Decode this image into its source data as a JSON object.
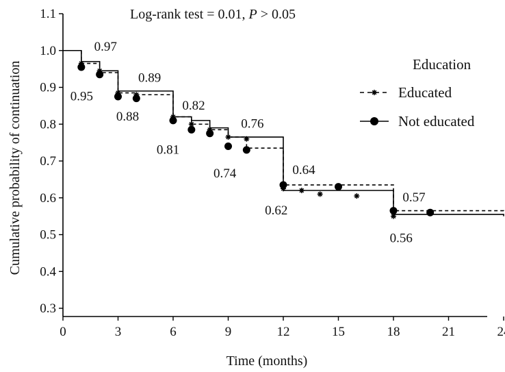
{
  "chart_data": {
    "type": "line",
    "title": "Log-rank test = 0.01, ",
    "title_p": "P",
    "title_suffix": " > 0.05",
    "xlabel": "Time (months)",
    "ylabel": "Cumulative probability of continuation",
    "xlim": [
      0,
      24
    ],
    "ylim": [
      0.3,
      1.1
    ],
    "xticks": [
      0,
      3,
      6,
      9,
      12,
      15,
      18,
      21,
      24
    ],
    "yticks": [
      "0.3",
      "0.4",
      "0.5",
      "0.6",
      "0.7",
      "0.8",
      "0.9",
      "1.0",
      "1.1"
    ],
    "grid": false,
    "legend": {
      "title": "Education",
      "position": "right"
    },
    "series": [
      {
        "name": "Educated",
        "style": "dashed",
        "marker": "star",
        "steps": [
          [
            0,
            1.0
          ],
          [
            1,
            0.965
          ],
          [
            2,
            0.94
          ],
          [
            3,
            0.885
          ],
          [
            4,
            0.88
          ],
          [
            6,
            0.82
          ],
          [
            7,
            0.8
          ],
          [
            8,
            0.785
          ],
          [
            9,
            0.765
          ],
          [
            10,
            0.735
          ],
          [
            12,
            0.635
          ],
          [
            18,
            0.565
          ],
          [
            24,
            0.56
          ]
        ],
        "markers": [
          [
            1,
            0.965
          ],
          [
            2,
            0.945
          ],
          [
            3,
            0.885
          ],
          [
            4,
            0.88
          ],
          [
            6,
            0.82
          ],
          [
            7,
            0.8
          ],
          [
            8,
            0.785
          ],
          [
            9,
            0.765
          ],
          [
            10,
            0.76
          ],
          [
            12,
            0.625
          ],
          [
            13,
            0.62
          ],
          [
            14,
            0.61
          ],
          [
            16,
            0.605
          ],
          [
            18,
            0.55
          ]
        ]
      },
      {
        "name": "Not educated",
        "style": "solid",
        "marker": "circle",
        "steps": [
          [
            0,
            1.0
          ],
          [
            1,
            0.97
          ],
          [
            2,
            0.945
          ],
          [
            3,
            0.89
          ],
          [
            6,
            0.82
          ],
          [
            7,
            0.81
          ],
          [
            8,
            0.79
          ],
          [
            9,
            0.765
          ],
          [
            12,
            0.62
          ],
          [
            18,
            0.555
          ],
          [
            24,
            0.55
          ]
        ],
        "markers": [
          [
            1,
            0.955
          ],
          [
            2,
            0.935
          ],
          [
            3,
            0.875
          ],
          [
            4,
            0.87
          ],
          [
            6,
            0.81
          ],
          [
            7,
            0.785
          ],
          [
            8,
            0.775
          ],
          [
            9,
            0.74
          ],
          [
            10,
            0.73
          ],
          [
            12,
            0.635
          ],
          [
            15,
            0.63
          ],
          [
            18,
            0.565
          ],
          [
            20,
            0.56
          ]
        ]
      }
    ],
    "annotations": [
      {
        "text": "0.97",
        "x": 1.7,
        "y": 1.0
      },
      {
        "text": "0.95",
        "x": 0.4,
        "y": 0.865
      },
      {
        "text": "0.89",
        "x": 4.1,
        "y": 0.915
      },
      {
        "text": "0.88",
        "x": 2.9,
        "y": 0.81
      },
      {
        "text": "0.82",
        "x": 6.5,
        "y": 0.84
      },
      {
        "text": "0.81",
        "x": 5.1,
        "y": 0.72
      },
      {
        "text": "0.76",
        "x": 9.7,
        "y": 0.79
      },
      {
        "text": "0.74",
        "x": 8.2,
        "y": 0.655
      },
      {
        "text": "0.64",
        "x": 12.5,
        "y": 0.665
      },
      {
        "text": "0.62",
        "x": 11.0,
        "y": 0.555
      },
      {
        "text": "0.57",
        "x": 18.5,
        "y": 0.59
      },
      {
        "text": "0.56",
        "x": 17.8,
        "y": 0.48
      }
    ]
  }
}
